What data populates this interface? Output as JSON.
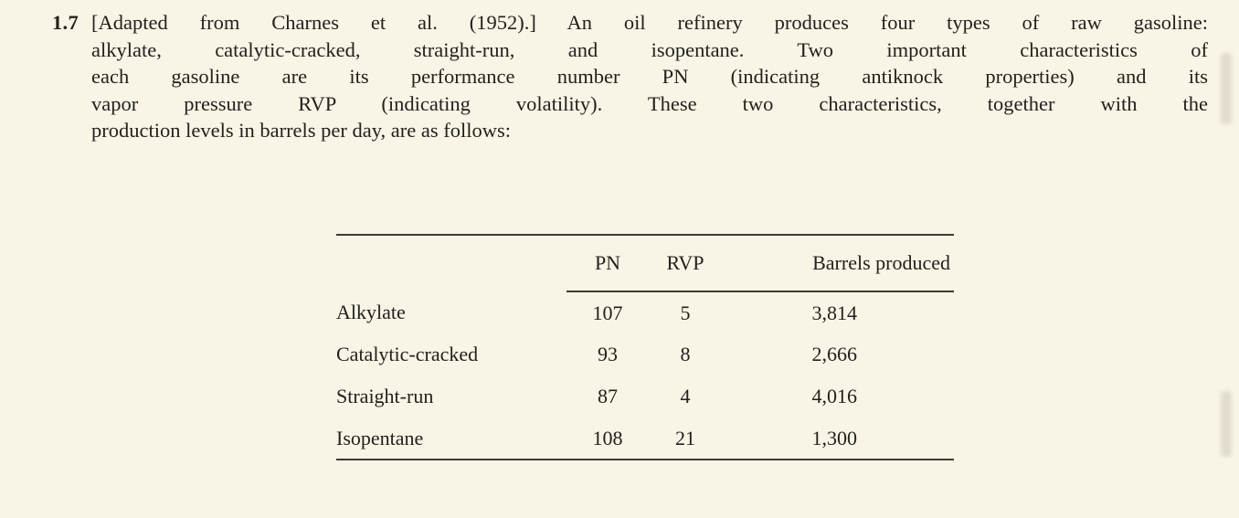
{
  "colors": {
    "background": "#f8f4e6",
    "ink": "#23211c",
    "rule": "#3d3a32"
  },
  "exercise": {
    "number": "1.7",
    "lines": [
      "[Adapted from Charnes et al. (1952).] An oil refinery produces four types of raw gasoline:",
      "alkylate, catalytic-cracked, straight-run, and isopentane. Two important characteristics of",
      "each gasoline are its performance number PN (indicating antiknock properties) and its",
      "vapor pressure RVP (indicating volatility). These two characteristics, together with the",
      "production levels in barrels per day, are as follows:"
    ]
  },
  "table": {
    "headers": {
      "label": "",
      "pn": "PN",
      "rvp": "RVP",
      "barrels": "Barrels produced"
    },
    "rows": [
      {
        "label": "Alkylate",
        "pn": "107",
        "rvp": "5",
        "barrels": "3,814"
      },
      {
        "label": "Catalytic-cracked",
        "pn": "93",
        "rvp": "8",
        "barrels": "2,666"
      },
      {
        "label": "Straight-run",
        "pn": "87",
        "rvp": "4",
        "barrels": "4,016"
      },
      {
        "label": "Isopentane",
        "pn": "108",
        "rvp": "21",
        "barrels": "1,300"
      }
    ]
  }
}
